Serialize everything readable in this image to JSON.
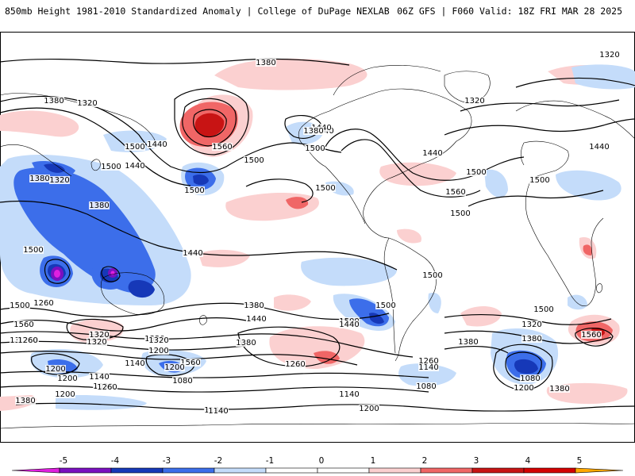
{
  "header": {
    "title": "850mb Height 1981-2010 Standardized Anomaly | College of DuPage NEXLAB",
    "run_info": "06Z GFS | F060 Valid: 18Z FRI MAR 28 2025"
  },
  "colors": {
    "neg5": "#e020e0",
    "neg4": "#7a10c0",
    "neg3": "#1638b8",
    "neg2": "#3c6eea",
    "neg1": "#c4dcfa",
    "pos1": "#fbd0d0",
    "pos2": "#f06666",
    "pos3": "#c81414",
    "pos4": "#d40000",
    "pos5": "#ffa800",
    "contour": "#000000",
    "coast": "#000000"
  },
  "colorbar": {
    "ticks": [
      "-5",
      "-4",
      "-3",
      "-2",
      "-1",
      "0",
      "1",
      "2",
      "3",
      "4",
      "5"
    ]
  },
  "contour_labels": [
    "1320",
    "1380",
    "1380",
    "1320",
    "1440",
    "1440",
    "1500",
    "1500",
    "1380",
    "1320",
    "1380",
    "1560",
    "1500",
    "1500",
    "1440",
    "1380",
    "1440",
    "1500",
    "1560",
    "1380",
    "1320",
    "1260",
    "1440",
    "1560",
    "1500",
    "1500",
    "1500",
    "1560",
    "1500",
    "1500",
    "1500",
    "1500",
    "1500",
    "1440",
    "1440",
    "1500",
    "1320",
    "1200",
    "1140",
    "1260",
    "1380",
    "1380",
    "1320",
    "1260",
    "1380",
    "1200",
    "1080",
    "1200",
    "1140",
    "1080",
    "1140",
    "1200",
    "1140",
    "1320",
    "1200",
    "1080",
    "1260",
    "1200",
    "1380",
    "1560",
    "1260",
    "1320",
    "1500",
    "1380",
    "1440",
    "1440",
    "1140",
    "1140",
    "1200",
    "1260",
    "1320",
    "1380",
    "1080"
  ]
}
